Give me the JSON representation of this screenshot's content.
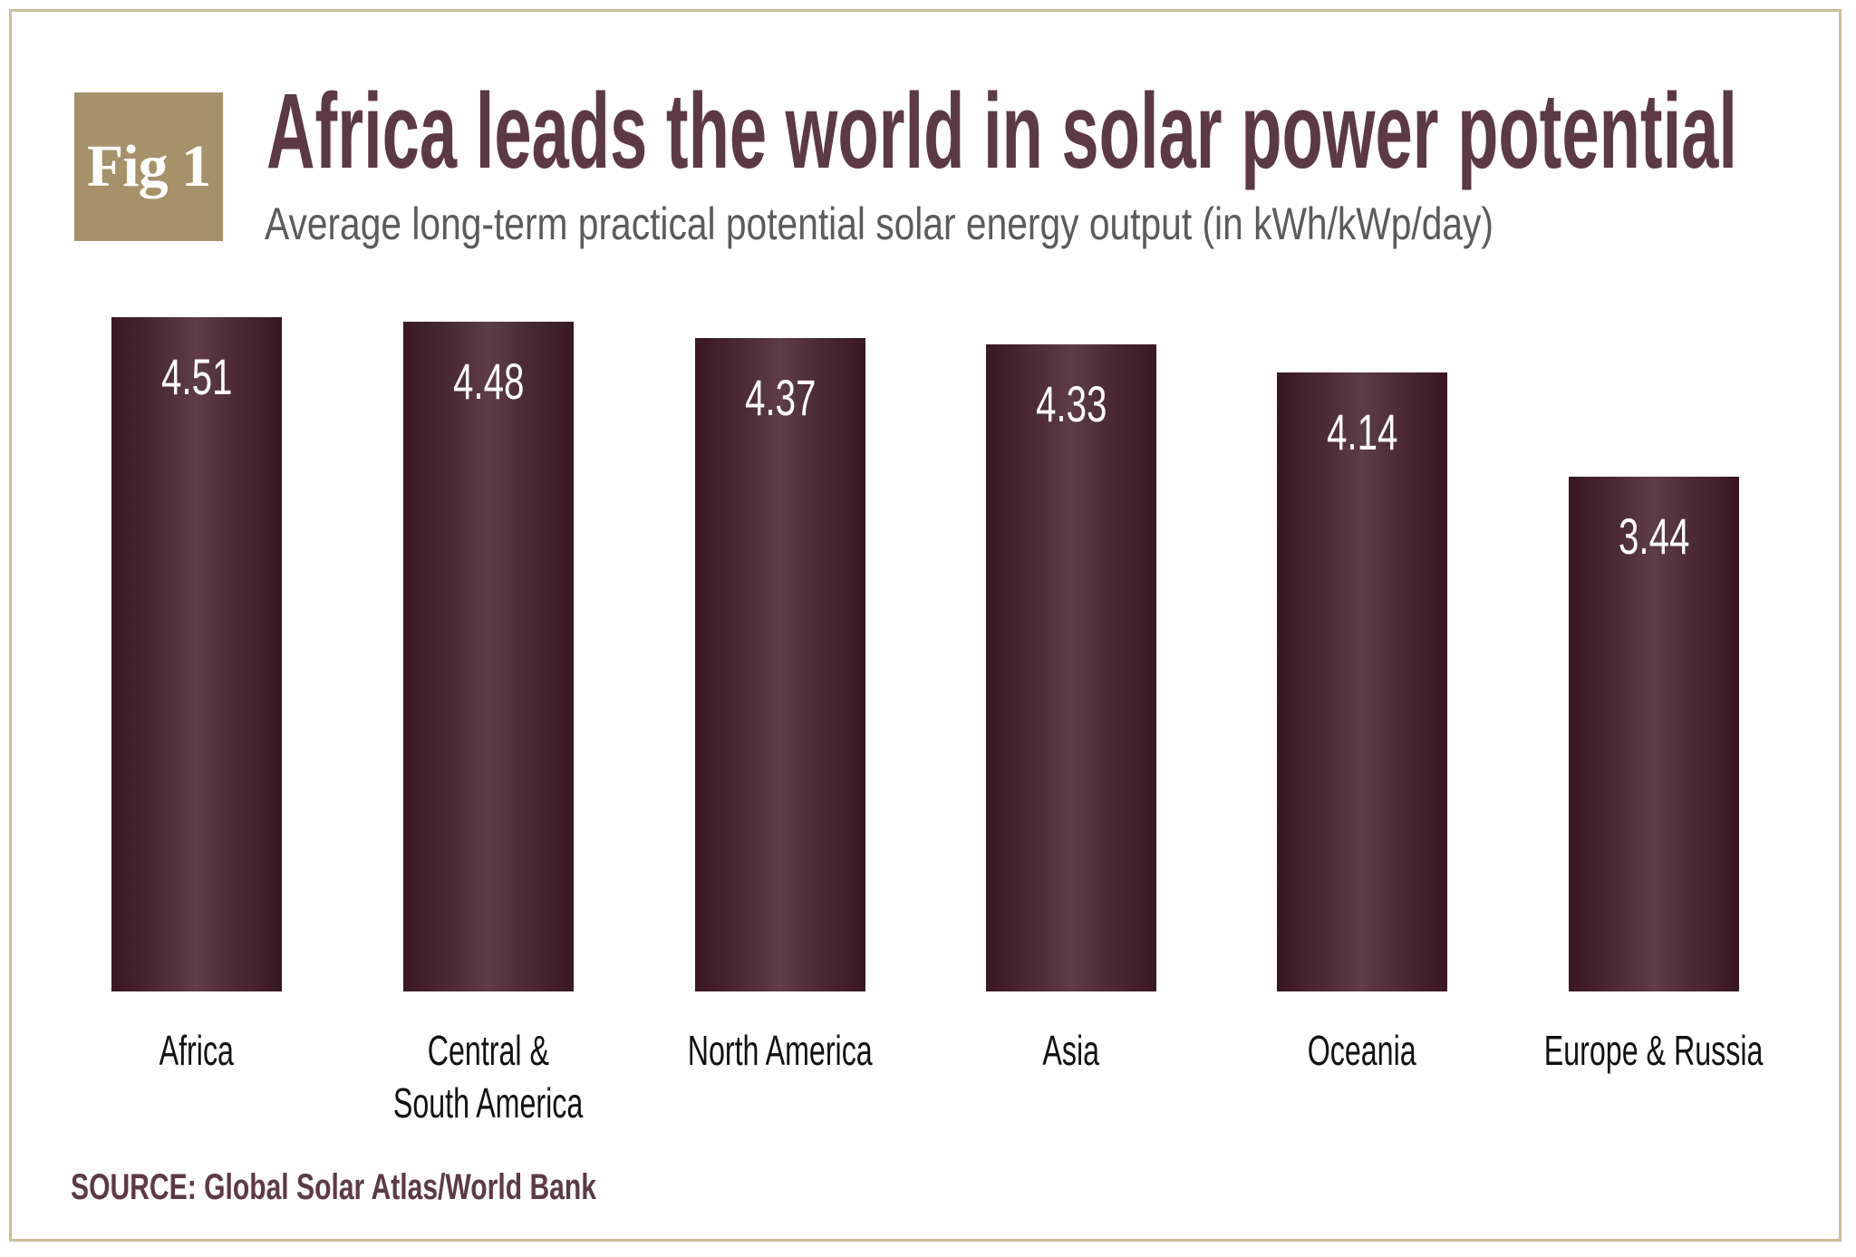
{
  "badge": "Fig 1",
  "chart_data": {
    "type": "bar",
    "title": "Africa leads the world in solar power potential",
    "subtitle": "Average long-term practical potential solar energy output (in kWh/kWp/day)",
    "categories": [
      "Africa",
      "Central & South America",
      "North America",
      "Asia",
      "Oceania",
      "Europe & Russia"
    ],
    "category_lines": [
      [
        "Africa"
      ],
      [
        "Central &",
        "South America"
      ],
      [
        "North America"
      ],
      [
        "Asia"
      ],
      [
        "Oceania"
      ],
      [
        "Europe & Russia"
      ]
    ],
    "values": [
      4.51,
      4.48,
      4.37,
      4.33,
      4.14,
      3.44
    ],
    "value_labels": [
      "4.51",
      "4.48",
      "4.37",
      "4.33",
      "4.14",
      "3.44"
    ],
    "ylim": [
      0,
      4.51
    ],
    "grid": false,
    "bar_color": "#4d2b37",
    "source": "SOURCE: Global Solar Atlas/World Bank"
  },
  "colors": {
    "title": "#5d3946",
    "badge": "#a6916a",
    "frame": "#c9bf9c"
  }
}
